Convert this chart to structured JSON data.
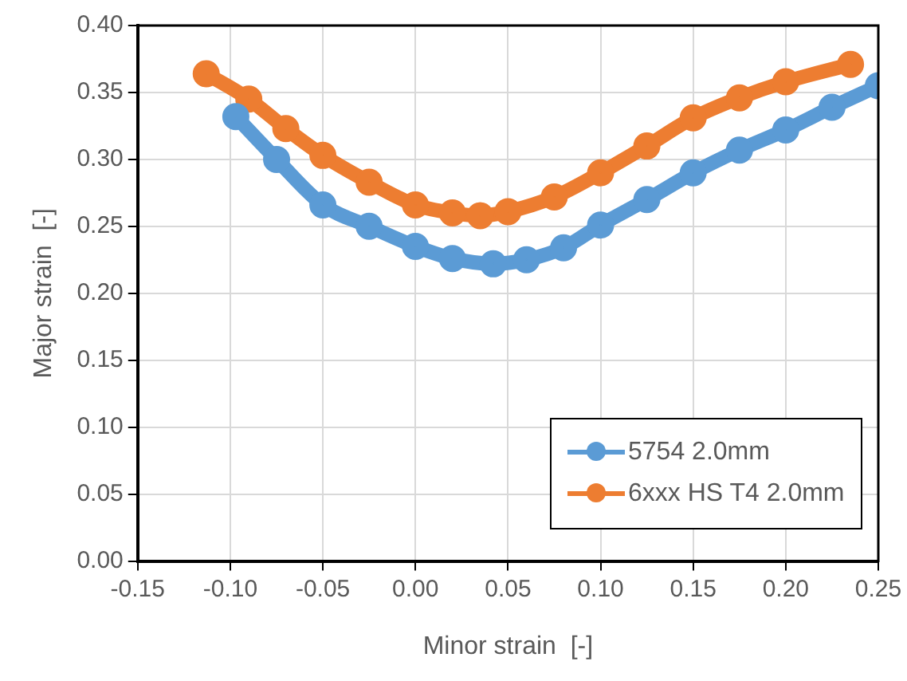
{
  "chart_data": {
    "type": "line",
    "xlabel": "Minor strain  [-]",
    "ylabel": "Major strain  [-]",
    "xlim": [
      -0.15,
      0.25
    ],
    "xticks": [
      -0.15,
      {
        "value": -0.1,
        "label": "-0.10"
      },
      -0.05,
      {
        "value": 0,
        "label": "0.00"
      },
      0.05,
      {
        "value": 0.1,
        "label": "0.10"
      },
      0.15,
      {
        "value": 0.2,
        "label": "0.20"
      },
      0.25
    ],
    "ylim": [
      0,
      0.4
    ],
    "yticks": [
      {
        "value": 0,
        "label": "0.00"
      },
      0.05,
      {
        "value": 0.1,
        "label": "0.10"
      },
      0.15,
      {
        "value": 0.2,
        "label": "0.20"
      },
      0.25,
      {
        "value": 0.3,
        "label": "0.30"
      },
      0.35,
      {
        "value": 0.4,
        "label": "0.40"
      }
    ],
    "grid": true,
    "legend": "bottom right",
    "marker": "circle",
    "line_style": "solid",
    "series": [
      {
        "name": "5754 2.0mm",
        "color": "#5b9bd5",
        "x": [
          -0.097,
          -0.075,
          -0.05,
          -0.025,
          0,
          0.02,
          0.042,
          0.06,
          0.08,
          0.1,
          0.125,
          0.15,
          0.175,
          0.2,
          0.225,
          0.25
        ],
        "values": [
          0.332,
          0.3,
          0.266,
          0.25,
          0.235,
          0.226,
          0.222,
          0.225,
          0.234,
          0.251,
          0.27,
          0.29,
          0.307,
          0.322,
          0.339,
          0.355
        ]
      },
      {
        "name": "6xxx HS T4 2.0mm",
        "color": "#ed7d31",
        "x": [
          -0.113,
          -0.09,
          -0.07,
          -0.05,
          -0.025,
          0,
          0.02,
          0.035,
          0.05,
          0.075,
          0.1,
          0.125,
          0.15,
          0.175,
          0.2,
          0.235
        ],
        "values": [
          0.364,
          0.345,
          0.323,
          0.303,
          0.283,
          0.266,
          0.26,
          0.258,
          0.261,
          0.272,
          0.29,
          0.31,
          0.331,
          0.346,
          0.358,
          0.371
        ]
      }
    ]
  }
}
